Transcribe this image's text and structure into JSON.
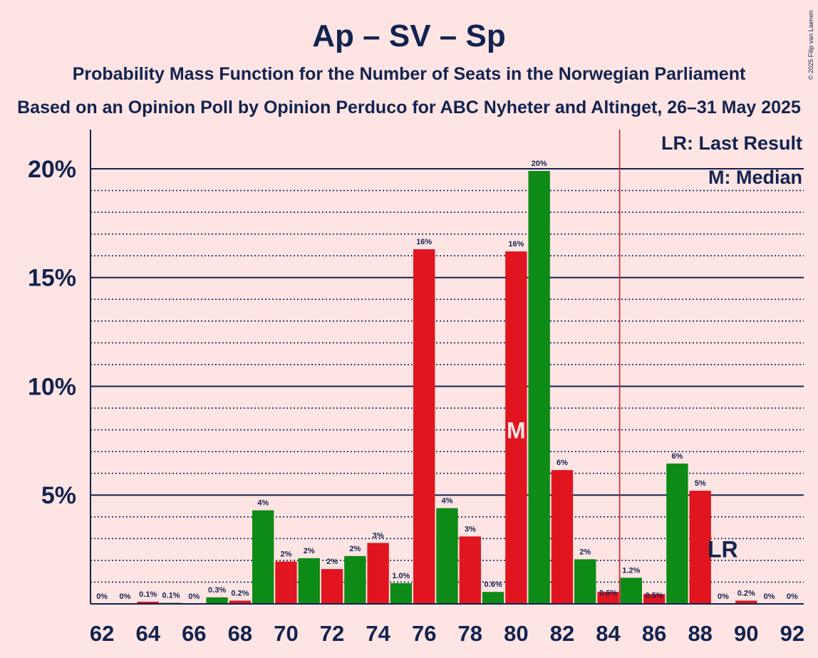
{
  "chart_data": {
    "type": "bar",
    "title": "Ap – SV – Sp",
    "subtitle": "Probability Mass Function for the Number of Seats in the Norwegian Parliament",
    "subtitle2": "Based on an Opinion Poll by Opinion Perduco for ABC Nyheter and Altinget, 26–31 May 2025",
    "copyright": "© 2025 Filip van Laenen",
    "ylim": [
      0,
      21.8
    ],
    "xlim": [
      61.5,
      92.5
    ],
    "yticks": [
      {
        "value": 5,
        "label": "5%"
      },
      {
        "value": 10,
        "label": "10%"
      },
      {
        "value": 15,
        "label": "15%"
      },
      {
        "value": 20,
        "label": "20%"
      }
    ],
    "xticks": [
      62,
      64,
      66,
      68,
      70,
      72,
      74,
      76,
      78,
      80,
      82,
      84,
      86,
      88,
      90,
      92
    ],
    "bars": [
      {
        "x": 62,
        "value": 0,
        "label": "0%"
      },
      {
        "x": 63,
        "value": 0,
        "label": "0%"
      },
      {
        "x": 64,
        "value": 0.1,
        "label": "0.1%"
      },
      {
        "x": 65,
        "value": 0.05,
        "label": "0.1%"
      },
      {
        "x": 66,
        "value": 0,
        "label": "0%"
      },
      {
        "x": 67,
        "value": 0.3,
        "label": "0.3%"
      },
      {
        "x": 68,
        "value": 0.15,
        "label": "0.2%"
      },
      {
        "x": 69,
        "value": 4.3,
        "label": "4%"
      },
      {
        "x": 70,
        "value": 1.95,
        "label": "2%"
      },
      {
        "x": 71,
        "value": 2.1,
        "label": "2%"
      },
      {
        "x": 72,
        "value": 1.6,
        "label": "2%"
      },
      {
        "x": 73,
        "value": 2.2,
        "label": "2%"
      },
      {
        "x": 74,
        "value": 2.8,
        "label": "3%"
      },
      {
        "x": 75,
        "value": 0.95,
        "label": "1.0%"
      },
      {
        "x": 76,
        "value": 16.3,
        "label": "16%"
      },
      {
        "x": 77,
        "value": 4.4,
        "label": "4%"
      },
      {
        "x": 78,
        "value": 3.1,
        "label": "3%"
      },
      {
        "x": 79,
        "value": 0.55,
        "label": "0.6%"
      },
      {
        "x": 80,
        "value": 16.2,
        "label": "16%"
      },
      {
        "x": 81,
        "value": 19.9,
        "label": "20%"
      },
      {
        "x": 82,
        "value": 6.15,
        "label": "6%"
      },
      {
        "x": 83,
        "value": 2.05,
        "label": "2%"
      },
      {
        "x": 84,
        "value": 0.55,
        "label": "0.6%"
      },
      {
        "x": 85,
        "value": 1.2,
        "label": "1.2%"
      },
      {
        "x": 86,
        "value": 0.45,
        "label": "0.5%"
      },
      {
        "x": 87,
        "value": 6.45,
        "label": "6%"
      },
      {
        "x": 88,
        "value": 5.2,
        "label": "5%"
      },
      {
        "x": 89,
        "value": 0,
        "label": "0%"
      },
      {
        "x": 90,
        "value": 0.15,
        "label": "0.2%"
      },
      {
        "x": 91,
        "value": 0,
        "label": "0%"
      },
      {
        "x": 92,
        "value": 0,
        "label": "0%"
      }
    ],
    "median": {
      "x": 80,
      "label": "M"
    },
    "last_result": {
      "x": 89,
      "label": "LR"
    },
    "majority_line_x": 84.5,
    "legend": [
      "LR: Last Result",
      "M: Median"
    ],
    "legend_placement": "top-right",
    "colors": {
      "red": "#e0151f",
      "green": "#0e8a16",
      "axis": "#12234f",
      "background": "#ffe4e4",
      "threshold": "#e0151f"
    }
  }
}
